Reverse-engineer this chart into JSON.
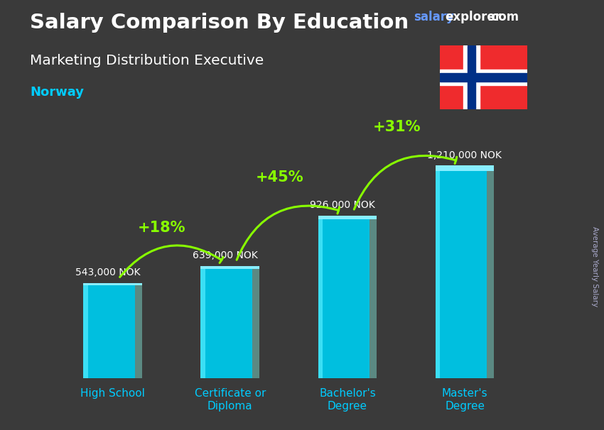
{
  "title_line1": "Salary Comparison By Education",
  "subtitle": "Marketing Distribution Executive",
  "country": "Norway",
  "ylabel": "Average Yearly Salary",
  "categories": [
    "High School",
    "Certificate or\nDiploma",
    "Bachelor's\nDegree",
    "Master's\nDegree"
  ],
  "values": [
    543000,
    639000,
    926000,
    1210000
  ],
  "value_labels": [
    "543,000 NOK",
    "639,000 NOK",
    "926,000 NOK",
    "1,210,000 NOK"
  ],
  "pct_labels": [
    "+18%",
    "+45%",
    "+31%"
  ],
  "bar_color_main": "#00bfdf",
  "bar_color_light": "#33ddff",
  "bar_color_side": "#007799",
  "bar_color_top": "#66eeff",
  "background_color": "#3a3a3a",
  "title_color": "#ffffff",
  "subtitle_color": "#ffffff",
  "country_color": "#00ccff",
  "value_label_color": "#ffffff",
  "pct_color": "#88ff00",
  "arrow_color": "#88ff00",
  "watermark_salary_color": "#6699ff",
  "watermark_explorer_color": "#ffffff",
  "watermark_com_color": "#ffffff",
  "xtick_color": "#00ccff",
  "ylabel_color": "#aaaacc"
}
